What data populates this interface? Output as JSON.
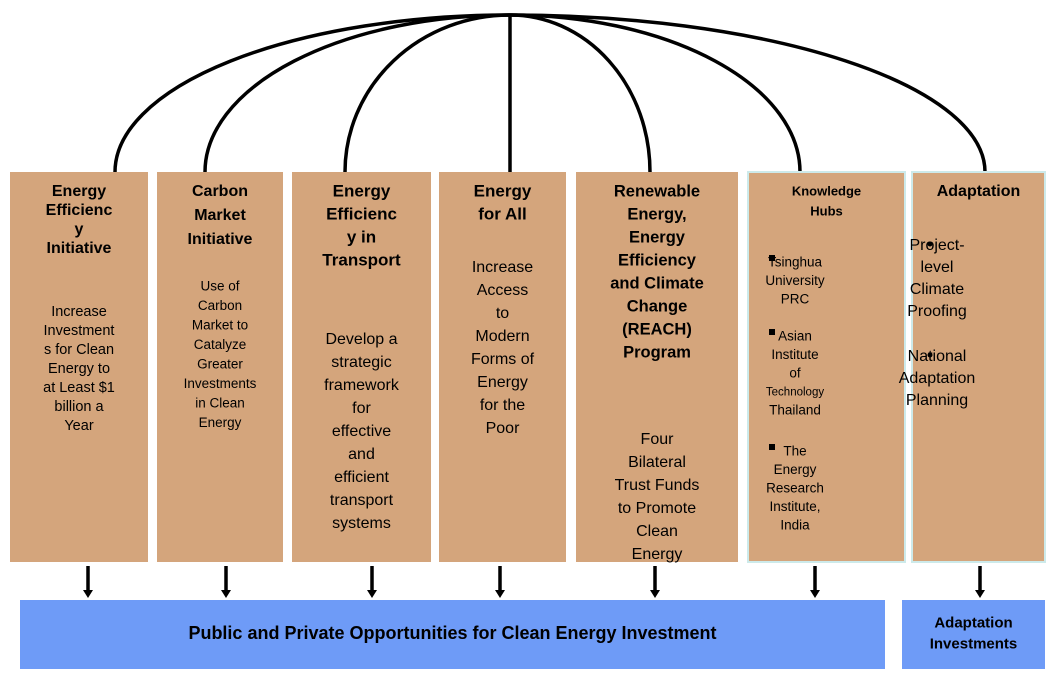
{
  "boxes": [
    {
      "title": [
        "Energy",
        "Efficienc",
        "y",
        "Initiative"
      ],
      "body": [
        "Increase",
        "Investment",
        "s for Clean",
        "Energy to",
        "at Least $1",
        "billion a",
        "Year"
      ]
    },
    {
      "title": [
        "Carbon",
        "Market",
        "Initiative"
      ],
      "body": [
        "Use of",
        "Carbon",
        "Market to",
        "Catalyze",
        "Greater",
        "Investments",
        "in Clean",
        "Energy"
      ]
    },
    {
      "title": [
        "Energy",
        "Efficienc",
        "y in",
        "Transport"
      ],
      "body": [
        "Develop a",
        "strategic",
        "framework",
        "for",
        "effective",
        "and",
        "efficient",
        "transport",
        "systems"
      ]
    },
    {
      "title": [
        "Energy",
        "for All"
      ],
      "body": [
        "Increase",
        "Access",
        "to",
        "Modern",
        "Forms of",
        "Energy",
        "for the",
        "Poor"
      ]
    },
    {
      "title": [
        "Renewable",
        "Energy,",
        "Energy",
        "Efficiency",
        "and Climate",
        "Change",
        "(REACH)",
        "Program"
      ],
      "body": [
        "Four",
        "Bilateral",
        "Trust Funds",
        "to Promote",
        "Clean",
        "Energy"
      ]
    },
    {
      "title": [
        "Knowledge",
        "Hubs"
      ],
      "bullets": [
        [
          "Tsinghua",
          "University",
          "PRC"
        ],
        [
          "Asian",
          "Institute",
          "of",
          "Technology",
          "Thailand"
        ],
        [
          "The",
          "Energy",
          "Research",
          "Institute,",
          "India"
        ]
      ]
    },
    {
      "title": [
        "Adaptation"
      ],
      "bullets": [
        [
          "Project-",
          "level",
          "Climate",
          "Proofing"
        ],
        [
          "National",
          "Adaptation",
          "Planning"
        ]
      ]
    }
  ],
  "outcomes": [
    {
      "label": [
        "Public and Private Opportunities for Clean Energy Investment"
      ]
    },
    {
      "label": [
        "Adaptation",
        "Investments"
      ]
    }
  ]
}
